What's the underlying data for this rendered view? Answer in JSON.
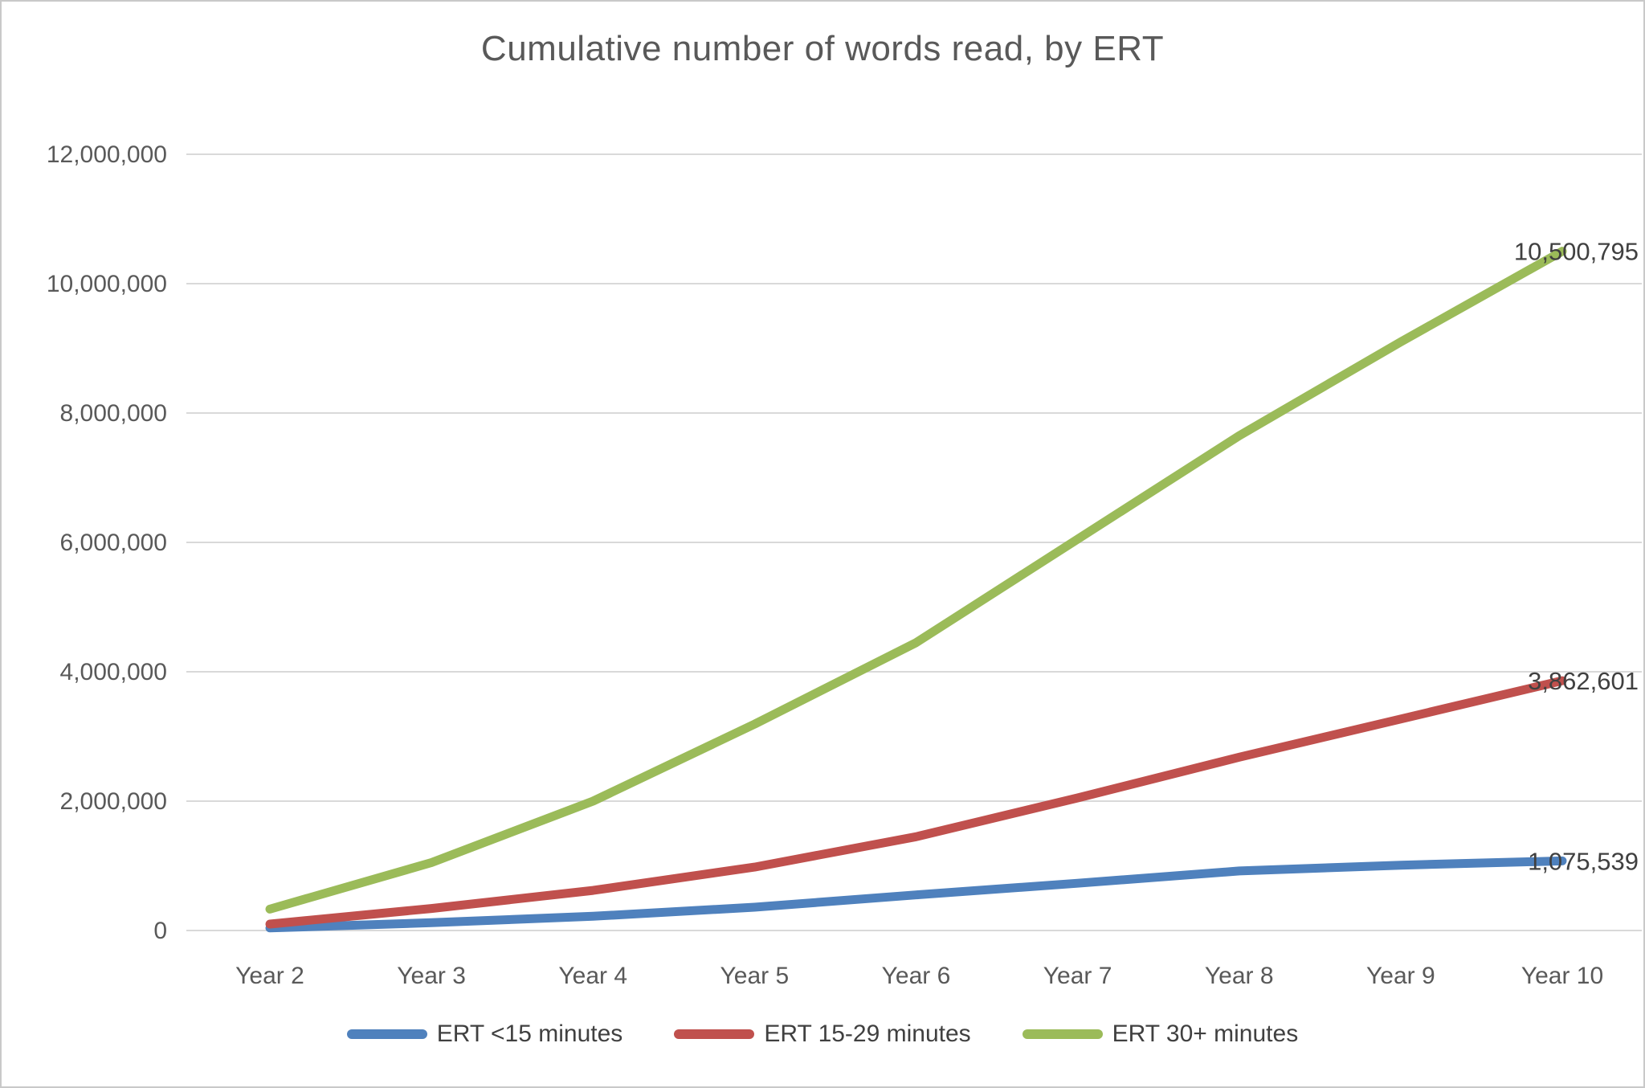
{
  "chart_data": {
    "type": "line",
    "title": "Cumulative number of words read, by ERT",
    "categories": [
      "Year 2",
      "Year 3",
      "Year 4",
      "Year 5",
      "Year 6",
      "Year 7",
      "Year 8",
      "Year 9",
      "Year 10"
    ],
    "series": [
      {
        "name": "ERT <15 minutes",
        "color": "#4F81BD",
        "values": [
          40000,
          120000,
          220000,
          360000,
          550000,
          730000,
          920000,
          1010000,
          1075539
        ],
        "end_label": "1,075,539"
      },
      {
        "name": "ERT 15-29 minutes",
        "color": "#C0504D",
        "values": [
          100000,
          340000,
          620000,
          980000,
          1450000,
          2050000,
          2680000,
          3270000,
          3862601
        ],
        "end_label": "3,862,601"
      },
      {
        "name": "ERT 30+ minutes",
        "color": "#9BBB59",
        "values": [
          330000,
          1050000,
          2000000,
          3190000,
          4450000,
          6050000,
          7650000,
          9100000,
          10500795
        ],
        "end_label": "10,500,795"
      }
    ],
    "xlabel": "",
    "ylabel": "",
    "ylim": [
      0,
      12000000
    ],
    "y_tick_interval": 2000000,
    "y_tick_labels": [
      "0",
      "2,000,000",
      "4,000,000",
      "6,000,000",
      "8,000,000",
      "10,000,000",
      "12,000,000"
    ],
    "grid": true,
    "legend_position": "bottom",
    "colors": {
      "title_text": "#595959",
      "axis_text": "#595959",
      "data_label_text": "#404040",
      "gridline": "#D9D9D9",
      "frame_border": "#C9C9C9",
      "background": "#FFFFFF"
    }
  }
}
